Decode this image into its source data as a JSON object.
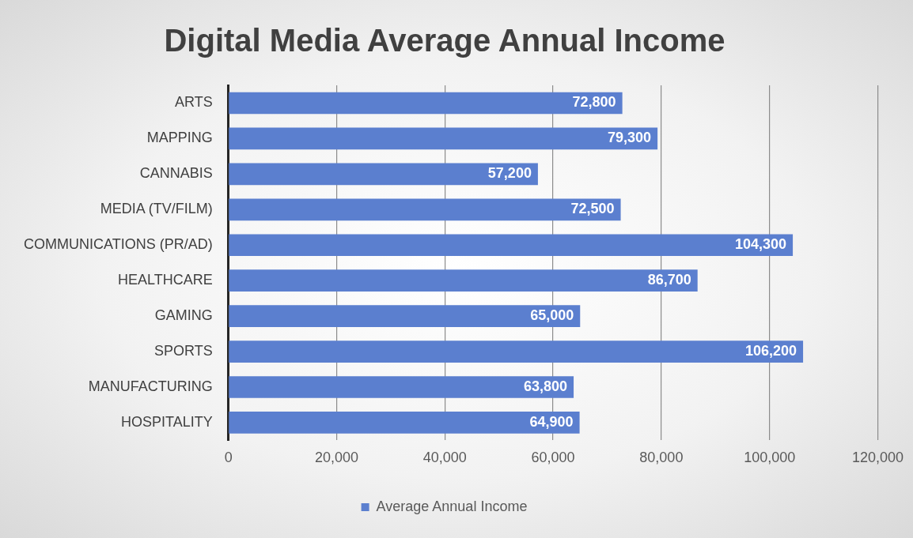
{
  "chart_data": {
    "type": "bar",
    "orientation": "horizontal",
    "title": "Digital Media Average Annual Income",
    "categories": [
      "ARTS",
      "MAPPING",
      "CANNABIS",
      "MEDIA (TV/FILM)",
      "COMMUNICATIONS (PR/AD)",
      "HEALTHCARE",
      "GAMING",
      "SPORTS",
      "MANUFACTURING",
      "HOSPITALITY"
    ],
    "series": [
      {
        "name": "Average Annual Income",
        "color": "#5b7fcf",
        "values": [
          72800,
          79300,
          57200,
          72500,
          104300,
          86700,
          65000,
          106200,
          63800,
          64900
        ],
        "value_labels": [
          "72,800",
          "79,300",
          "57,200",
          "72,500",
          "104,300",
          "86,700",
          "65,000",
          "106,200",
          "63,800",
          "64,900"
        ]
      }
    ],
    "xlim": [
      0,
      120000
    ],
    "xticks": [
      0,
      {
        "value": 20000,
        "label": "20,000"
      },
      {
        "value": 40000,
        "label": "40,000"
      },
      {
        "value": 60000,
        "label": "60,000"
      },
      {
        "value": 80000,
        "label": "80,000"
      },
      {
        "value": 100000,
        "label": "100,000"
      },
      {
        "value": 120000,
        "label": "120,000"
      }
    ],
    "grid": "x",
    "legend": "bottom"
  }
}
